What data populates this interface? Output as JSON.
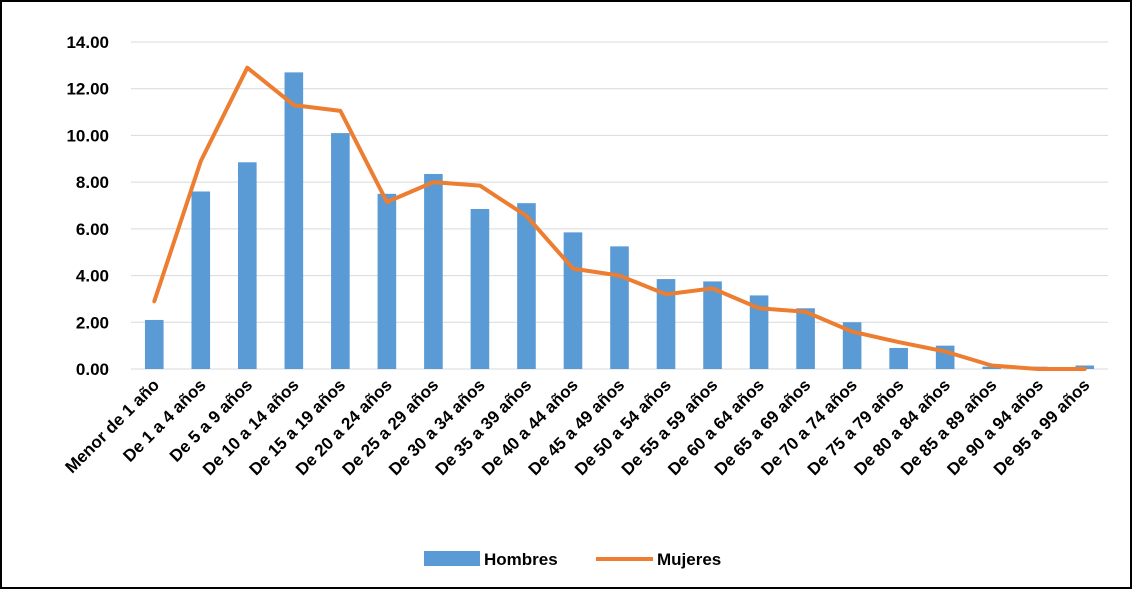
{
  "chart_data": {
    "type": "bar",
    "categories": [
      "Menor de 1 año",
      "De 1 a 4 años",
      "De 5 a 9 años",
      "De 10 a 14 años",
      "De 15 a 19 años",
      "De 20 a 24 años",
      "De 25 a 29 años",
      "De 30 a 34 años",
      "De 35 a 39 años",
      "De 40 a 44 años",
      "De 45 a 49 años",
      "De 50 a 54 años",
      "De 55 a 59 años",
      "De 60 a 64 años",
      "De 65 a 69 años",
      "De 70 a 74 años",
      "De 75 a 79 años",
      "De 80 a 84 años",
      "De 85 a 89 años",
      "De 90 a 94 años",
      "De 95 a 99 años"
    ],
    "series": [
      {
        "name": "Hombres",
        "type": "bar",
        "color": "#5B9BD5",
        "values": [
          2.1,
          7.6,
          8.85,
          12.7,
          10.1,
          7.5,
          8.35,
          6.85,
          7.1,
          5.85,
          5.25,
          3.85,
          3.75,
          3.15,
          2.6,
          2.0,
          0.9,
          1.0,
          0.1,
          0.1,
          0.15
        ]
      },
      {
        "name": "Mujeres",
        "type": "line",
        "color": "#ED7D31",
        "values": [
          2.9,
          8.9,
          12.9,
          11.3,
          11.05,
          7.15,
          8.0,
          7.85,
          6.55,
          4.3,
          4.0,
          3.2,
          3.45,
          2.6,
          2.45,
          1.6,
          1.15,
          0.75,
          0.15,
          0.0,
          0.0
        ]
      }
    ],
    "yticks": [
      "0.00",
      "2.00",
      "4.00",
      "6.00",
      "8.00",
      "10.00",
      "12.00",
      "14.00"
    ],
    "ylim": [
      0,
      14
    ],
    "title": "",
    "xlabel": "",
    "ylabel": "",
    "grid": true,
    "legend_position": "bottom"
  }
}
